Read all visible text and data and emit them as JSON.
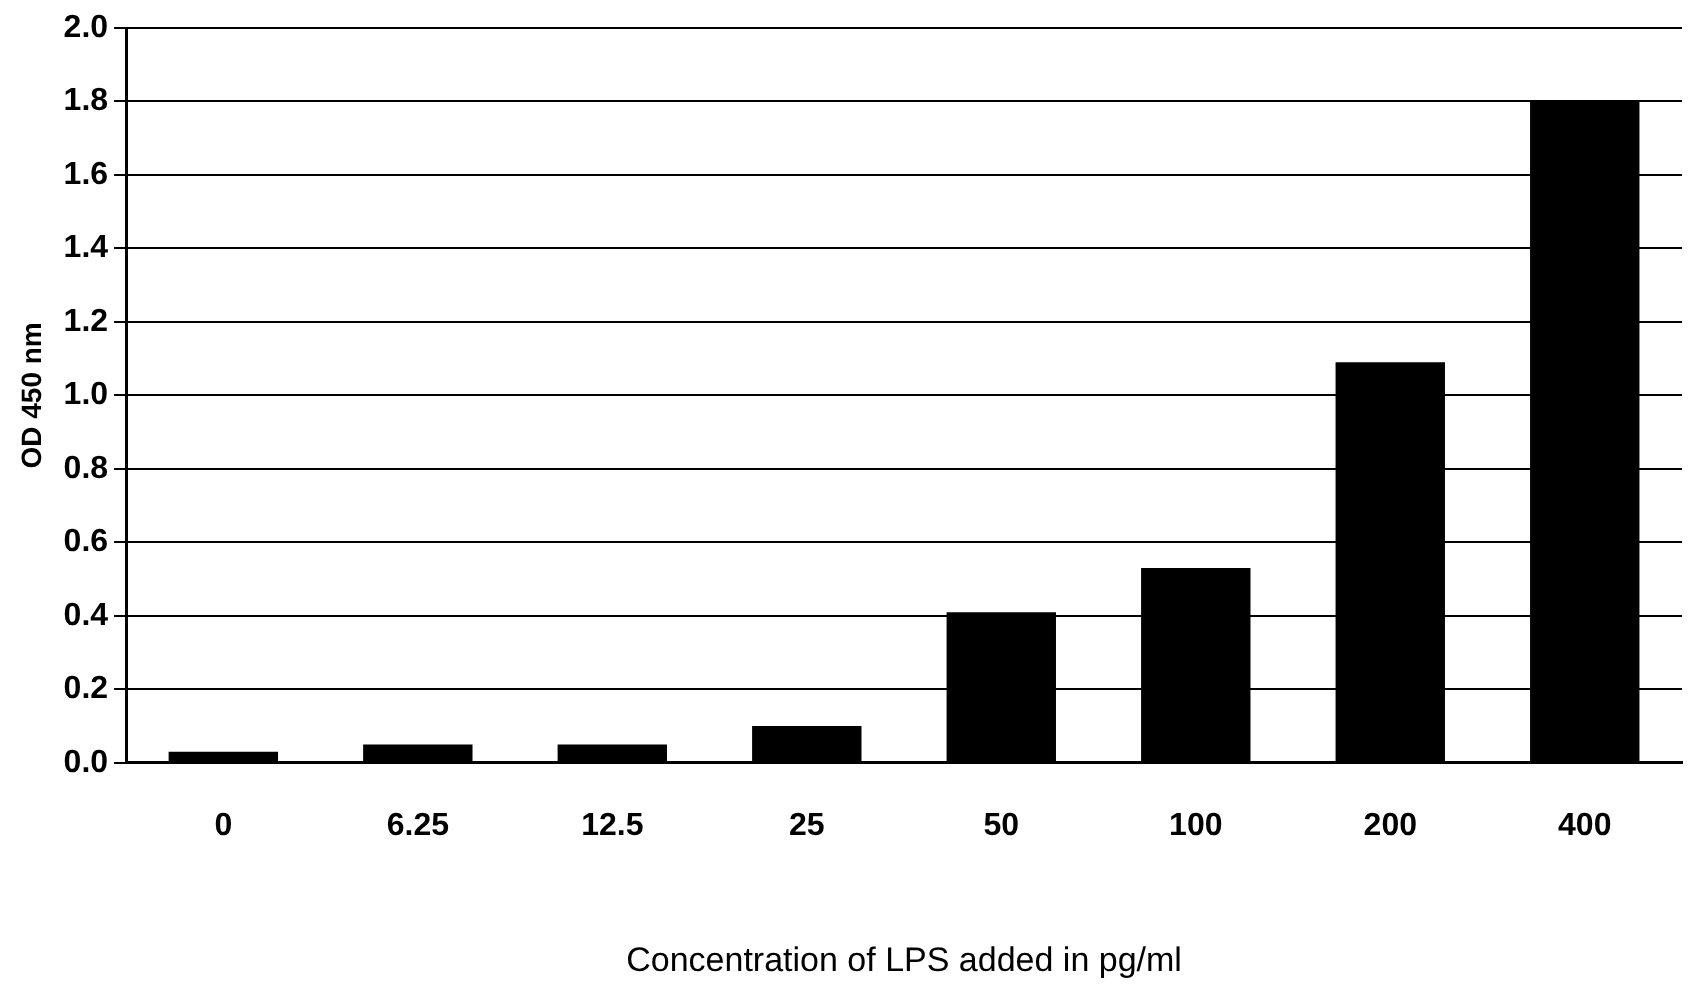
{
  "chart_data": {
    "type": "bar",
    "xlabel": "Concentration of LPS added in pg/ml",
    "ylabel": "OD 450 nm",
    "categories": [
      "0",
      "6.25",
      "12.5",
      "25",
      "50",
      "100",
      "200",
      "400"
    ],
    "values": [
      0.03,
      0.05,
      0.05,
      0.1,
      0.41,
      0.53,
      1.09,
      1.8
    ],
    "color": "#000000",
    "ylim": [
      0,
      2
    ],
    "yticks": [
      {
        "value": 0,
        "label": "0.0"
      },
      {
        "value": 0.2,
        "label": "0.2"
      },
      {
        "value": 0.4,
        "label": "0.4"
      },
      {
        "value": 0.6,
        "label": "0.6"
      },
      {
        "value": 0.8,
        "label": "0.8"
      },
      {
        "value": 1,
        "label": "1.0"
      },
      {
        "value": 1.2,
        "label": "1.2"
      },
      {
        "value": 1.4,
        "label": "1.4"
      },
      {
        "value": 1.6,
        "label": "1.6"
      },
      {
        "value": 1.8,
        "label": "1.8"
      },
      {
        "value": 2,
        "label": "2.0"
      }
    ],
    "grid": "y"
  }
}
